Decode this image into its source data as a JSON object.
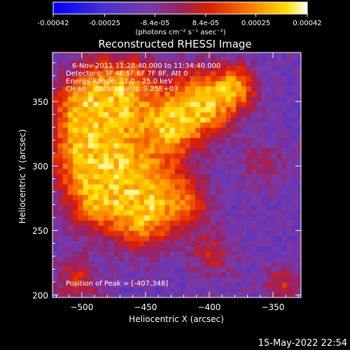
{
  "colorbar": {
    "tick_labels": [
      "-0.00042",
      "-0.00025",
      "-8.4e-05",
      "8.4e-05",
      "0.00025",
      "0.00042"
    ],
    "tick_values": [
      -0.00042,
      -0.00025,
      -8.4e-05,
      8.4e-05,
      0.00025,
      0.00042
    ],
    "range": [
      -0.00042,
      0.00042
    ],
    "unit_label": "(photons cm⁻² s⁻¹ asec⁻²)"
  },
  "chart_data": {
    "type": "heatmap",
    "title": "Reconstructed RHESSI Image",
    "xlabel": "Heliocentric X (arcsec)",
    "ylabel": "Heliocentric Y (arcsec)",
    "xlim": [
      -523,
      -328
    ],
    "ylim": [
      198,
      388
    ],
    "xticks": [
      -500,
      -450,
      -400,
      -350
    ],
    "xtick_labels": [
      "−500",
      "−450",
      "−400",
      "−350"
    ],
    "yticks": [
      200,
      250,
      300,
      350
    ],
    "ytick_labels": [
      "200",
      "250",
      "300",
      "350"
    ],
    "colormap": "blue-purple-red-yellow-white",
    "annotations": {
      "time_range": "6-Nov-2011 11:28:40.000 to 11:34:40.000",
      "detectors": "Detectors: 3F 4F 5F 6F 7F 8F, Att 0",
      "energy_range": "Energy Range: 12.0 - 25.0 keV",
      "clean_counts": "Clean     Total counts: 9.25E+03",
      "peak_position": "Position of Peak = [-407,348]"
    },
    "peak": {
      "x": -407,
      "y": 348
    }
  },
  "footer": {
    "timestamp": "15-May-2022 22:54"
  }
}
